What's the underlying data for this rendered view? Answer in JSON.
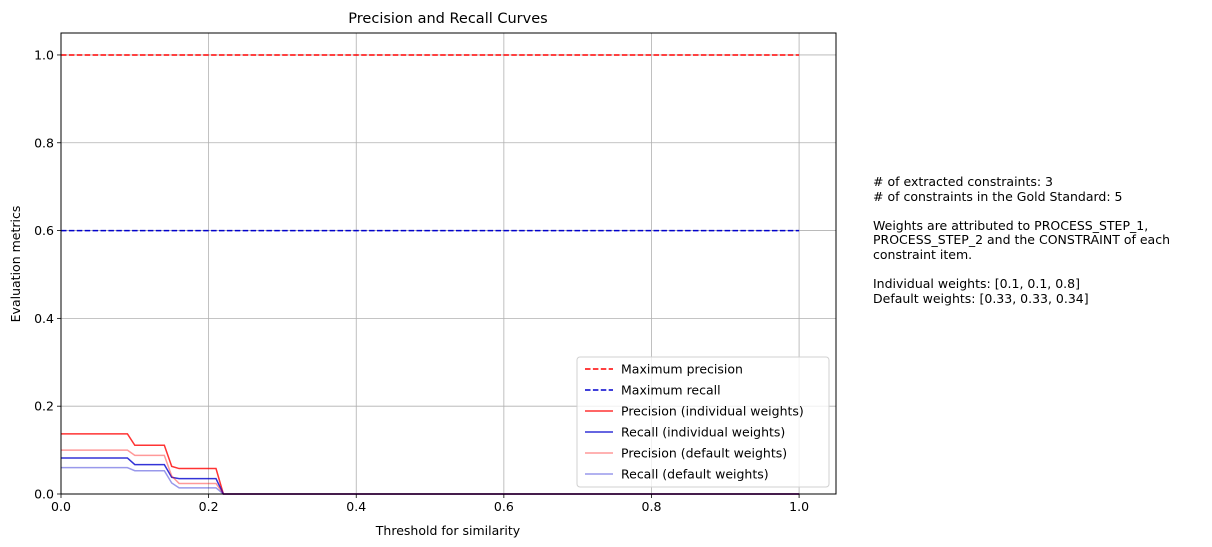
{
  "chart_data": {
    "type": "line",
    "title": "Precision and Recall Curves",
    "xlabel": "Threshold for similarity",
    "ylabel": "Evaluation metrics",
    "xlim": [
      0.0,
      1.05
    ],
    "ylim": [
      0.0,
      1.05
    ],
    "x_ticks": [
      0.0,
      0.2,
      0.4,
      0.6,
      0.8,
      1.0
    ],
    "x_tick_labels": [
      "0.0",
      "0.2",
      "0.4",
      "0.6",
      "0.8",
      "1.0"
    ],
    "y_ticks": [
      0.0,
      0.2,
      0.4,
      0.6,
      0.8,
      1.0
    ],
    "y_tick_labels": [
      "0.0",
      "0.2",
      "0.4",
      "0.6",
      "0.8",
      "1.0"
    ],
    "grid": true,
    "legend_position": "lower-right",
    "series": [
      {
        "name": "Maximum precision",
        "color": "#ff0000",
        "style": "dashed",
        "opacity": 1.0,
        "x": [
          0.0,
          1.0
        ],
        "y": [
          1.0,
          1.0
        ]
      },
      {
        "name": "Maximum recall",
        "color": "#0000cd",
        "style": "dashed",
        "opacity": 1.0,
        "x": [
          0.0,
          1.0
        ],
        "y": [
          0.6,
          0.6
        ]
      },
      {
        "name": "Precision (individual weights)",
        "color": "#ff0000",
        "style": "solid",
        "opacity": 0.8,
        "x": [
          0.0,
          0.09,
          0.1,
          0.14,
          0.15,
          0.16,
          0.21,
          0.22,
          1.0
        ],
        "y": [
          0.137,
          0.137,
          0.111,
          0.111,
          0.063,
          0.058,
          0.058,
          0.0,
          0.0
        ]
      },
      {
        "name": "Recall (individual weights)",
        "color": "#0000cd",
        "style": "solid",
        "opacity": 0.8,
        "x": [
          0.0,
          0.09,
          0.1,
          0.14,
          0.15,
          0.16,
          0.21,
          0.22,
          1.0
        ],
        "y": [
          0.082,
          0.082,
          0.067,
          0.067,
          0.038,
          0.035,
          0.035,
          0.0,
          0.0
        ]
      },
      {
        "name": "Precision (default weights)",
        "color": "#ff0000",
        "style": "solid",
        "opacity": 0.4,
        "x": [
          0.0,
          0.09,
          0.1,
          0.14,
          0.15,
          0.16,
          0.21,
          0.22,
          1.0
        ],
        "y": [
          0.1,
          0.1,
          0.088,
          0.088,
          0.041,
          0.024,
          0.024,
          0.0,
          0.0
        ]
      },
      {
        "name": "Recall (default weights)",
        "color": "#0000cd",
        "style": "solid",
        "opacity": 0.4,
        "x": [
          0.0,
          0.09,
          0.1,
          0.14,
          0.15,
          0.16,
          0.21,
          0.22,
          1.0
        ],
        "y": [
          0.06,
          0.06,
          0.053,
          0.053,
          0.025,
          0.014,
          0.014,
          0.0,
          0.0
        ]
      }
    ]
  },
  "side_text": {
    "lines": [
      "# of extracted constraints: 3",
      "# of constraints in the Gold Standard: 5",
      "",
      "Weights are attributed to PROCESS_STEP_1,",
      "PROCESS_STEP_2 and the CONSTRAINT of each",
      "constraint item.",
      "",
      "Individual weights: [0.1, 0.1, 0.8]",
      "Default weights: [0.33, 0.33, 0.34]"
    ]
  }
}
